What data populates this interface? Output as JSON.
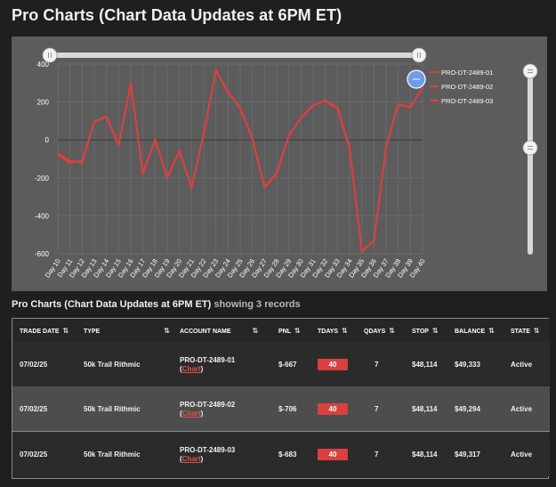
{
  "page": {
    "title": "Pro Charts (Chart Data Updates at 6PM ET)"
  },
  "chart_data": {
    "type": "line",
    "x": [
      "Day 10",
      "Day 11",
      "Day 12",
      "Day 13",
      "Day 14",
      "Day 15",
      "Day 16",
      "Day 17",
      "Day 18",
      "Day 19",
      "Day 20",
      "Day 21",
      "Day 22",
      "Day 23",
      "Day 24",
      "Day 25",
      "Day 26",
      "Day 27",
      "Day 28",
      "Day 29",
      "Day 30",
      "Day 31",
      "Day 32",
      "Day 33",
      "Day 34",
      "Day 35",
      "Day 36",
      "Day 37",
      "Day 38",
      "Day 39",
      "Day 40"
    ],
    "series": [
      {
        "name": "PRO-DT-2489-01",
        "color": "#d94040",
        "values": [
          -70,
          -110,
          -120,
          100,
          120,
          -30,
          300,
          -180,
          0,
          -200,
          -60,
          -250,
          30,
          370,
          250,
          170,
          10,
          -250,
          -180,
          20,
          120,
          180,
          210,
          170,
          -40,
          -590,
          -530,
          -40,
          190,
          170,
          280
        ]
      },
      {
        "name": "PRO-DT-2489-02",
        "color": "#d94040",
        "values": [
          -80,
          -120,
          -110,
          95,
          125,
          -25,
          295,
          -175,
          5,
          -195,
          -55,
          -255,
          35,
          365,
          255,
          165,
          5,
          -245,
          -175,
          25,
          115,
          185,
          205,
          165,
          -45,
          -585,
          -535,
          -35,
          185,
          175,
          275
        ]
      },
      {
        "name": "PRO-DT-2489-03",
        "color": "#d94040",
        "values": [
          -75,
          -115,
          -115,
          98,
          122,
          -28,
          298,
          -178,
          2,
          -198,
          -58,
          -252,
          32,
          368,
          252,
          168,
          8,
          -248,
          -178,
          22,
          118,
          182,
          208,
          168,
          -42,
          -588,
          -532,
          -38,
          188,
          172,
          278
        ]
      }
    ],
    "yticks": [
      "400",
      "200",
      "0",
      "-200",
      "-400",
      "-600"
    ],
    "ylim": [
      -600,
      400
    ],
    "grid": true,
    "legend": "top-right"
  },
  "section": {
    "title": "Pro Charts (Chart Data Updates at 6PM ET)",
    "showing": "showing 3 records"
  },
  "table": {
    "sort_icon": "⇅",
    "columns": [
      "TRADE DATE",
      "TYPE",
      "ACCOUNT NAME",
      "PNL",
      "TDAYS",
      "QDAYS",
      "STOP",
      "BALANCE",
      "STATE"
    ],
    "rows": [
      {
        "trade_date": "07/02/25",
        "type": "50k Trail Rithmic",
        "account": "PRO-DT-2489-01",
        "chart_open": "(",
        "chart_link": "Chart",
        "chart_close": ")",
        "pnl": "$-667",
        "tdays": "40",
        "qdays": "7",
        "stop": "$48,114",
        "balance": "$49,333",
        "state": "Active"
      },
      {
        "trade_date": "07/02/25",
        "type": "50k Trail Rithmic",
        "account": "PRO-DT-2489-02",
        "chart_open": "(",
        "chart_link": "Chart",
        "chart_close": ")",
        "pnl": "$-706",
        "tdays": "40",
        "qdays": "7",
        "stop": "$48,114",
        "balance": "$49,294",
        "state": "Active"
      },
      {
        "trade_date": "07/02/25",
        "type": "50k Trail Rithmic",
        "account": "PRO-DT-2489-03",
        "chart_open": "(",
        "chart_link": "Chart",
        "chart_close": ")",
        "pnl": "$-683",
        "tdays": "40",
        "qdays": "7",
        "stop": "$48,114",
        "balance": "$49,317",
        "state": "Active"
      }
    ]
  }
}
